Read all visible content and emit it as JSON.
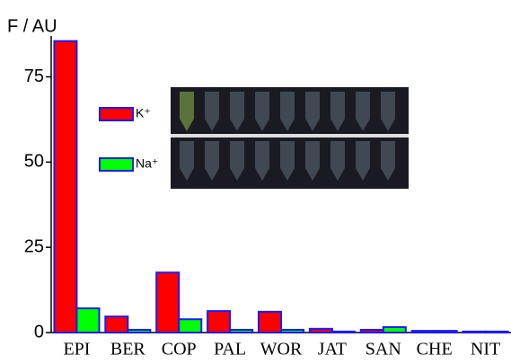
{
  "chart_data": {
    "type": "bar",
    "y_label": "F / AU",
    "categories": [
      "EPI",
      "BER",
      "COP",
      "PAL",
      "WOR",
      "JAT",
      "SAN",
      "CHE",
      "NIT"
    ],
    "series": [
      {
        "name": "K⁺",
        "color": "#ff0000",
        "values": [
          85.5,
          4.7,
          17.6,
          6.3,
          6.1,
          1.1,
          0.8,
          0.5,
          0.3
        ]
      },
      {
        "name": "Na⁺",
        "color": "#00ff00",
        "values": [
          7.1,
          0.8,
          3.9,
          0.8,
          0.8,
          0.3,
          1.6,
          0.5,
          0.3
        ]
      }
    ],
    "edge_color": "#1a1aff",
    "ylim": [
      0,
      87
    ],
    "yticks": [
      0,
      25,
      50,
      75
    ]
  }
}
